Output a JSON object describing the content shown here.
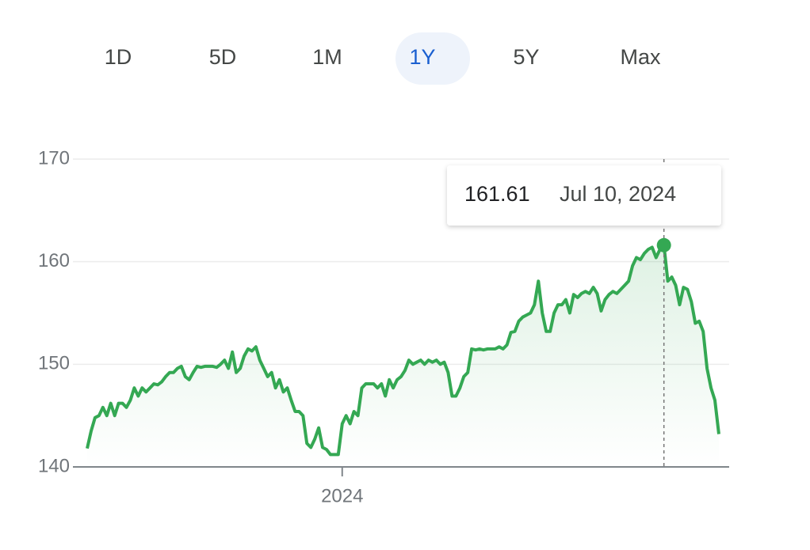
{
  "range_selector": {
    "options": [
      "1D",
      "5D",
      "1M",
      "1Y",
      "5Y",
      "Max"
    ],
    "selected": "1Y"
  },
  "chart_data": {
    "type": "line",
    "values": [
      141.8,
      143.5,
      144.8,
      145,
      145.8,
      145,
      146.2,
      145,
      146.2,
      146.2,
      145.8,
      146.5,
      147.7,
      146.9,
      147.7,
      147.3,
      147.7,
      148.1,
      148,
      148.3,
      148.8,
      149.2,
      149.2,
      149.6,
      149.8,
      148.8,
      148.5,
      149.2,
      149.8,
      149.7,
      149.8,
      149.8,
      149.8,
      149.7,
      150,
      150.4,
      149.6,
      151.2,
      149.2,
      149.6,
      150.8,
      151.5,
      151.3,
      151.7,
      150.4,
      149.6,
      148.8,
      149.2,
      147.7,
      148.5,
      147.3,
      147.7,
      146.5,
      145.4,
      145.4,
      145,
      142.3,
      141.9,
      142.7,
      143.8,
      141.9,
      141.7,
      141.2,
      141.2,
      141.2,
      144.2,
      145,
      144.2,
      145.4,
      145,
      147.7,
      148.1,
      148.1,
      148.1,
      147.7,
      148.1,
      146.9,
      148.5,
      147.7,
      148.5,
      148.8,
      149.4,
      150.4,
      150,
      150.2,
      150.4,
      150,
      150.4,
      150.2,
      150.4,
      150,
      150.2,
      149.2,
      146.9,
      146.9,
      147.7,
      148.8,
      149.2,
      151.5,
      151.4,
      151.5,
      151.4,
      151.5,
      151.5,
      151.5,
      151.7,
      151.5,
      151.9,
      153.1,
      153.2,
      154.2,
      154.6,
      154.8,
      155,
      155.8,
      158.1,
      155,
      153.2,
      153.2,
      155,
      155.8,
      155.8,
      156.3,
      155,
      156.8,
      156.5,
      156.9,
      157.1,
      156.9,
      157.5,
      156.9,
      155.2,
      156.3,
      156.8,
      157.1,
      156.9,
      157.3,
      157.7,
      158.1,
      159.6,
      160.4,
      160.2,
      160.8,
      161.2,
      161.4,
      160.4,
      161.2,
      161.61,
      158.1,
      158.5,
      157.7,
      155.8,
      157.5,
      157.3,
      156.1,
      154,
      154.2,
      153.2,
      149.6,
      147.7,
      146.5,
      143.2
    ],
    "color": "#34a853",
    "xlim": [
      0,
      161
    ],
    "xticks": [
      {
        "value": 65,
        "label": "2024"
      }
    ],
    "ylim": [
      140,
      170
    ],
    "yticks": [
      140,
      150,
      160,
      170
    ],
    "grid": true,
    "highlight": {
      "x": 147,
      "value": 161.61,
      "label": "Jul 10, 2024"
    }
  }
}
